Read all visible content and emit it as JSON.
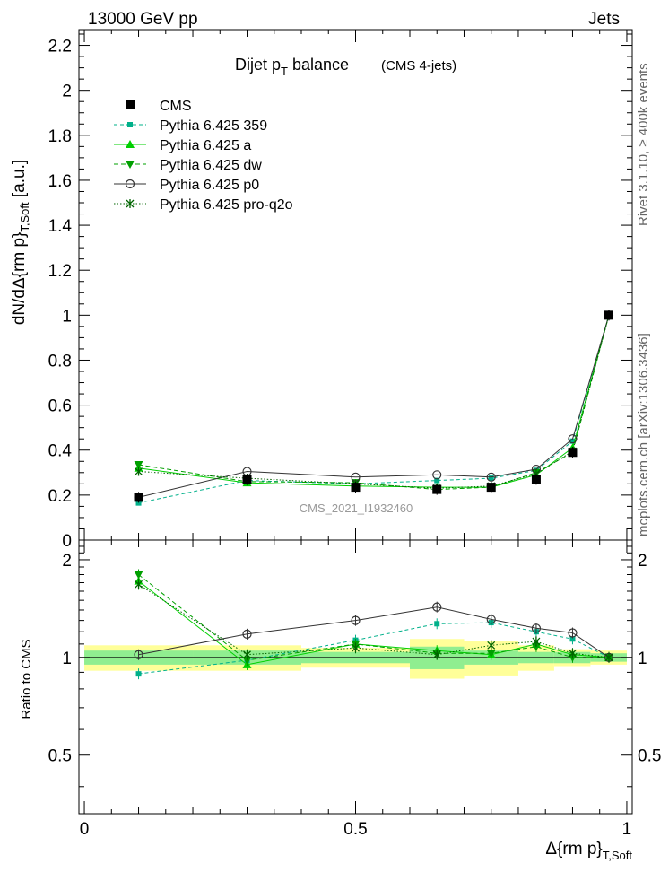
{
  "header": {
    "left": "13000 GeV pp",
    "right": "Jets",
    "side_top": "Rivet 3.1.10, ≥ 400k events",
    "side_bottom": "mcplots.cern.ch [arXiv:1306.3436]",
    "watermark": "CMS_2021_I1932460"
  },
  "chart_data": [
    {
      "type": "line",
      "panel": "main",
      "title_main": "Dijet p",
      "title_sub": "T",
      "title_rest": " balance",
      "title_extra": "(CMS 4-jets)",
      "ylabel": "dN/dΔ{rm p}",
      "ylabel_sub": "T,Soft",
      "ylabel_unit": " [a.u.]",
      "ylim": [
        0,
        2.27
      ],
      "xlim": [
        -0.01,
        1.01
      ],
      "yticks": [
        0,
        0.2,
        0.4,
        0.6,
        0.8,
        1,
        1.2,
        1.4,
        1.6,
        1.8,
        2,
        2.2
      ],
      "ytick_labels": [
        "0",
        "0.2",
        "0.4",
        "0.6",
        "0.8",
        "1",
        "1.2",
        "1.4",
        "1.6",
        "1.8",
        "2",
        "2.2"
      ],
      "x": [
        0.1,
        0.3,
        0.5,
        0.65,
        0.75,
        0.833,
        0.9,
        0.967
      ],
      "cms": {
        "name": "CMS",
        "color": "#000000",
        "values": [
          0.19,
          0.27,
          0.235,
          0.225,
          0.235,
          0.27,
          0.39,
          1.0
        ]
      },
      "series": [
        {
          "name": "Pythia 6.425 359",
          "color": "#00b08a",
          "dash": "4,3",
          "marker": "square",
          "values": [
            0.165,
            0.265,
            0.25,
            0.265,
            0.275,
            0.31,
            0.44,
            1.0
          ]
        },
        {
          "name": "Pythia 6.425 a",
          "color": "#00d000",
          "dash": "",
          "marker": "triangle-up",
          "values": [
            0.32,
            0.255,
            0.24,
            0.235,
            0.235,
            0.29,
            0.41,
            1.0
          ]
        },
        {
          "name": "Pythia 6.425 dw",
          "color": "#00a000",
          "dash": "5,3",
          "marker": "triangle-down",
          "values": [
            0.335,
            0.26,
            0.255,
            0.225,
            0.235,
            0.3,
            0.39,
            1.0
          ]
        },
        {
          "name": "Pythia 6.425 p0",
          "color": "#333333",
          "dash": "",
          "marker": "circle-open",
          "values": [
            0.19,
            0.305,
            0.28,
            0.29,
            0.28,
            0.315,
            0.45,
            1.0
          ]
        },
        {
          "name": "Pythia 6.425 pro-q2o",
          "color": "#006400",
          "dash": "1.5,2",
          "marker": "star",
          "values": [
            0.305,
            0.275,
            0.25,
            0.23,
            0.24,
            0.295,
            0.395,
            1.0
          ]
        }
      ]
    },
    {
      "type": "line",
      "panel": "ratio",
      "ylabel": "Ratio to CMS",
      "xlabel": "Δ{rm p}",
      "xlabel_sub": "T,Soft",
      "ylim": [
        0.33,
        2.3
      ],
      "xlim": [
        -0.01,
        1.01
      ],
      "yticks": [
        0.5,
        1,
        2
      ],
      "ytick_labels": [
        "0.5",
        "1",
        "2"
      ],
      "xticks": [
        0,
        0.5,
        1
      ],
      "xtick_labels": [
        "0",
        "0.5",
        "1"
      ],
      "bands": {
        "x_edges": [
          0,
          0.2,
          0.4,
          0.6,
          0.7,
          0.8,
          0.866,
          0.933,
          1.0
        ],
        "inner": [
          0.05,
          0.05,
          0.04,
          0.08,
          0.05,
          0.04,
          0.04,
          0.03
        ],
        "outer": [
          0.09,
          0.09,
          0.07,
          0.14,
          0.12,
          0.09,
          0.06,
          0.05
        ],
        "inner_color": "#90ee90",
        "outer_color": "#ffff99"
      },
      "x": [
        0.1,
        0.3,
        0.5,
        0.65,
        0.75,
        0.833,
        0.9,
        0.967
      ],
      "series": [
        {
          "name": "Pythia 6.425 359",
          "color": "#00b08a",
          "dash": "4,3",
          "marker": "square",
          "values": [
            0.89,
            0.98,
            1.13,
            1.27,
            1.28,
            1.2,
            1.14,
            1.0
          ]
        },
        {
          "name": "Pythia 6.425 a",
          "color": "#00d000",
          "dash": "",
          "marker": "triangle-up",
          "values": [
            1.72,
            0.95,
            1.1,
            1.05,
            1.02,
            1.1,
            1.02,
            1.0
          ]
        },
        {
          "name": "Pythia 6.425 dw",
          "color": "#00a000",
          "dash": "5,3",
          "marker": "triangle-down",
          "values": [
            1.8,
            0.98,
            1.1,
            1.03,
            1.03,
            1.08,
            1.0,
            1.0
          ]
        },
        {
          "name": "Pythia 6.425 p0",
          "color": "#333333",
          "dash": "",
          "marker": "circle-open",
          "values": [
            1.02,
            1.18,
            1.3,
            1.43,
            1.31,
            1.23,
            1.19,
            1.0
          ]
        },
        {
          "name": "Pythia 6.425 pro-q2o",
          "color": "#006400",
          "dash": "1.5,2",
          "marker": "star",
          "values": [
            1.68,
            1.02,
            1.07,
            1.02,
            1.09,
            1.12,
            1.03,
            1.0
          ]
        }
      ]
    }
  ]
}
